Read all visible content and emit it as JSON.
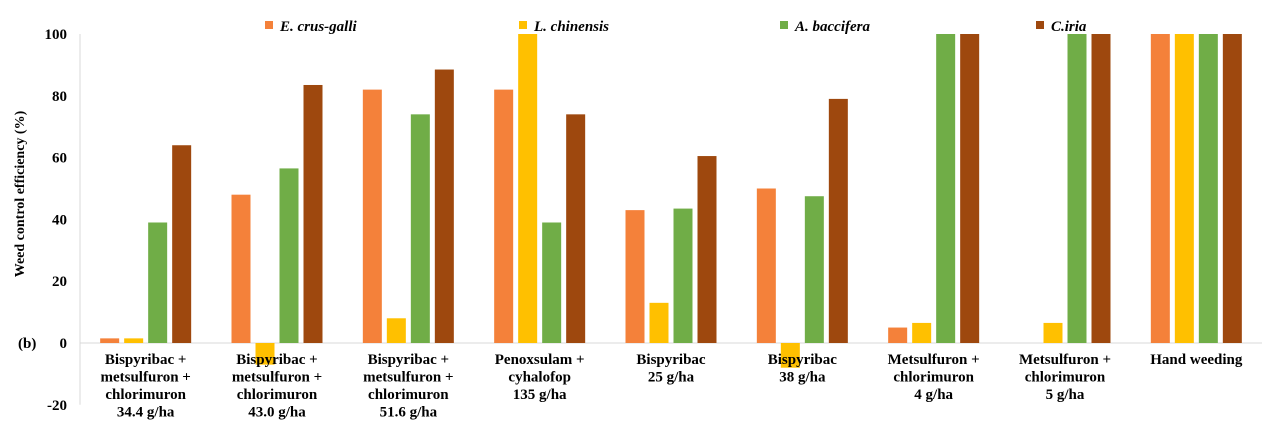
{
  "chart_data": {
    "type": "bar",
    "panel_label": "(b)",
    "ylabel": "Weed control efficiency (%)",
    "ylim": [
      -20,
      100
    ],
    "yticks": [
      -20,
      0,
      20,
      40,
      60,
      80,
      100
    ],
    "grid": false,
    "legend_position": "top",
    "categories": [
      [
        "Bispyribac +",
        "metsulfuron +",
        "chlorimuron",
        "34.4 g/ha"
      ],
      [
        "Bispyribac +",
        "metsulfuron +",
        "chlorimuron",
        "43.0 g/ha"
      ],
      [
        "Bispyribac +",
        "metsulfuron +",
        "chlorimuron",
        "51.6 g/ha"
      ],
      [
        "Penoxsulam +",
        "cyhalofop",
        "135 g/ha"
      ],
      [
        "Bispyribac",
        "25 g/ha"
      ],
      [
        "Bispyribac",
        "38 g/ha"
      ],
      [
        "Metsulfuron +",
        "chlorimuron",
        "4 g/ha"
      ],
      [
        "Metsulfuron +",
        "chlorimuron",
        "5 g/ha"
      ],
      [
        "Hand weeding"
      ]
    ],
    "series": [
      {
        "name": "E. crus-galli",
        "color": "#F4813A",
        "values": [
          1.5,
          48,
          82,
          82,
          43,
          50,
          5,
          0,
          100
        ]
      },
      {
        "name": "L. chinensis",
        "color": "#FFC000",
        "values": [
          1.5,
          -7,
          8,
          100,
          13,
          -8,
          6.5,
          6.5,
          100
        ]
      },
      {
        "name": "A. baccifera",
        "color": "#70AD47",
        "values": [
          39,
          56.5,
          74,
          39,
          43.5,
          47.5,
          100,
          100,
          100
        ]
      },
      {
        "name": "C.iria",
        "color": "#9E480E",
        "values": [
          64,
          83.5,
          88.5,
          74,
          60.5,
          79,
          100,
          100,
          100
        ]
      }
    ]
  }
}
